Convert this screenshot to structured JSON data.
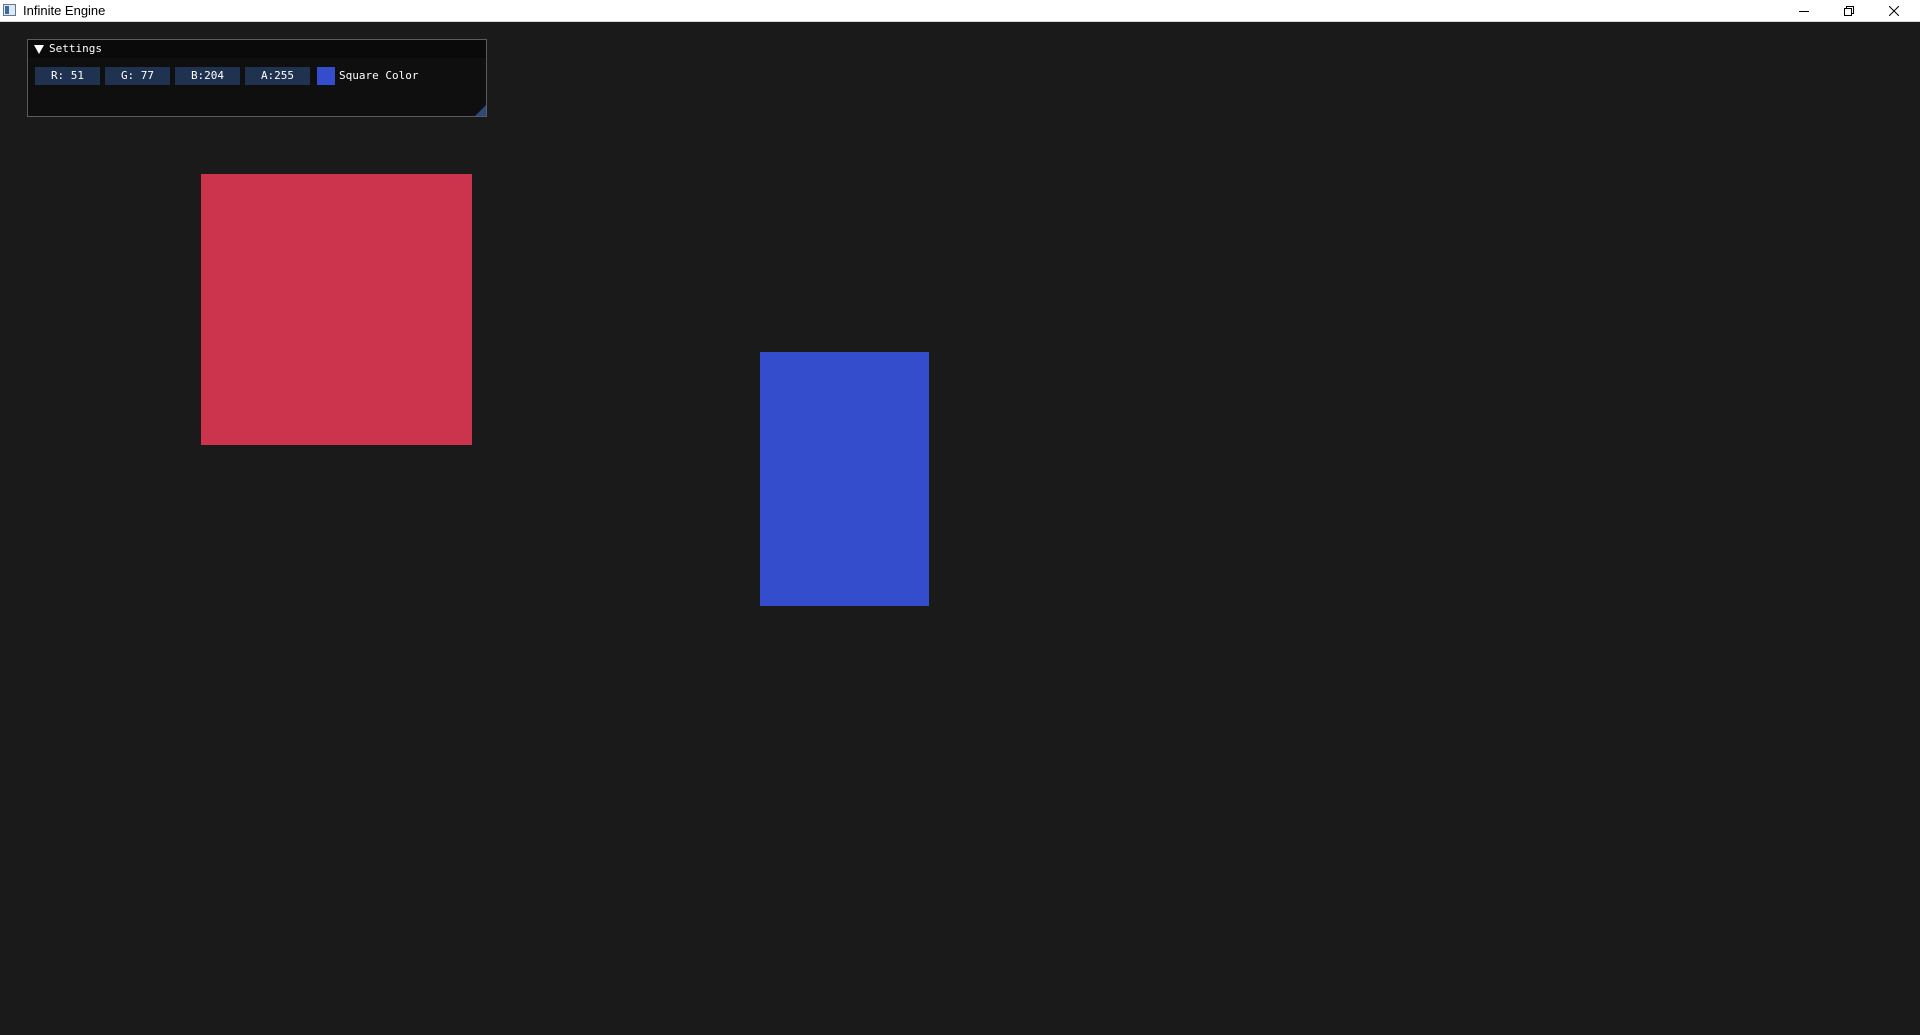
{
  "window": {
    "title": "Infinite Engine"
  },
  "settings": {
    "title": "Settings",
    "fields": {
      "r": "R: 51",
      "g": "G: 77",
      "b": "B:204",
      "a": "A:255"
    },
    "color_label": "Square Color",
    "color_value": "#334dcc"
  },
  "scene": {
    "red_square_color": "#cc334d",
    "blue_rect_color": "#334dcc"
  },
  "icons": [
    "app-icon",
    "minimize-icon",
    "restore-icon",
    "close-icon",
    "collapse-arrow-icon"
  ]
}
